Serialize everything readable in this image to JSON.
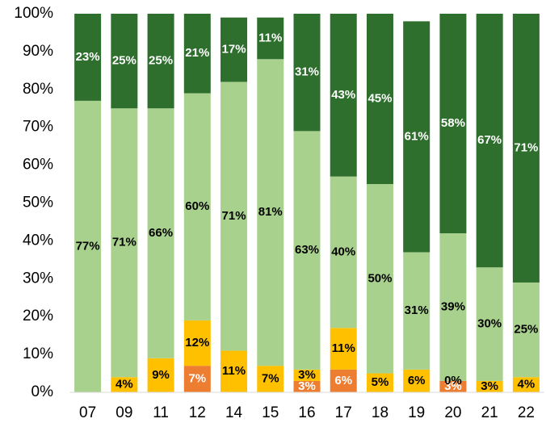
{
  "chart_data": {
    "type": "stacked_bar_100",
    "categories": [
      "07",
      "09",
      "11",
      "12",
      "14",
      "15",
      "16",
      "17",
      "18",
      "19",
      "20",
      "21",
      "22"
    ],
    "series": [
      {
        "color": "#ed7d31",
        "label_color": "#ffffff",
        "values": [
          0,
          0,
          0,
          7,
          0,
          0,
          3,
          6,
          0,
          0,
          3,
          0,
          0
        ],
        "value_labels": [
          null,
          null,
          null,
          "7%",
          null,
          null,
          "3%",
          "6%",
          null,
          null,
          "3%",
          null,
          null
        ]
      },
      {
        "color": "#ffc000",
        "label_color": "#000000",
        "values": [
          0,
          4,
          9,
          12,
          11,
          7,
          3,
          11,
          5,
          6,
          0,
          3,
          4
        ],
        "value_labels": [
          null,
          "4%",
          "9%",
          "12%",
          "11%",
          "7%",
          "3%",
          "11%",
          "5%",
          "6%",
          "0%",
          "3%",
          "4%"
        ]
      },
      {
        "color": "#a9d18e",
        "label_color": "#000000",
        "values": [
          77,
          71,
          66,
          60,
          71,
          81,
          63,
          40,
          50,
          31,
          39,
          30,
          25
        ],
        "value_labels": [
          "77%",
          "71%",
          "66%",
          "60%",
          "71%",
          "81%",
          "63%",
          "40%",
          "50%",
          "31%",
          "39%",
          "30%",
          "25%"
        ]
      },
      {
        "color": "#2e6f2e",
        "label_color": "#ffffff",
        "values": [
          23,
          25,
          25,
          21,
          17,
          11,
          31,
          43,
          45,
          61,
          58,
          67,
          71
        ],
        "value_labels": [
          "23%",
          "25%",
          "25%",
          "21%",
          "17%",
          "11%",
          "31%",
          "43%",
          "45%",
          "61%",
          "58%",
          "67%",
          "71%"
        ]
      }
    ],
    "ylim": [
      0,
      100
    ],
    "yticks": [
      {
        "value": 0,
        "label": "0%"
      },
      {
        "value": 10,
        "label": "10%"
      },
      {
        "value": 20,
        "label": "20%"
      },
      {
        "value": 30,
        "label": "30%"
      },
      {
        "value": 40,
        "label": "40%"
      },
      {
        "value": 50,
        "label": "50%"
      },
      {
        "value": 60,
        "label": "60%"
      },
      {
        "value": 70,
        "label": "70%"
      },
      {
        "value": 80,
        "label": "80%"
      },
      {
        "value": 90,
        "label": "90%"
      },
      {
        "value": 100,
        "label": "100%"
      }
    ],
    "grid": false
  }
}
